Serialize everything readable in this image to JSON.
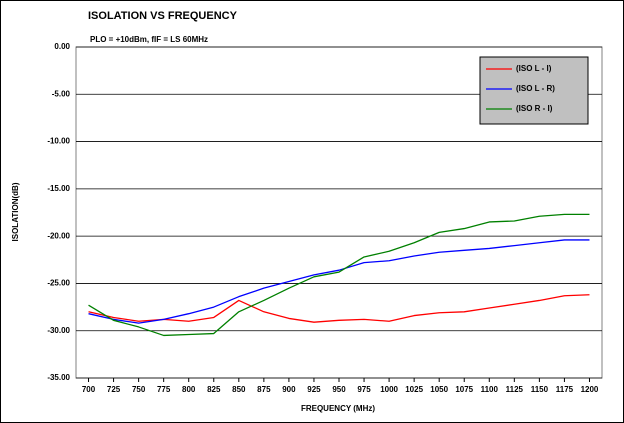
{
  "chart_data": {
    "type": "line",
    "title": "ISOLATION VS FREQUENCY",
    "subtitle": "PLO = +10dBm, fIF = LS 60MHz",
    "x_label": "FREQUENCY (MHz)",
    "y_label": "ISOLATION(dB)",
    "x": [
      700,
      725,
      750,
      775,
      800,
      825,
      850,
      875,
      900,
      925,
      950,
      975,
      1000,
      1025,
      1050,
      1075,
      1100,
      1125,
      1150,
      1175,
      1200
    ],
    "series": [
      {
        "name": "(ISO L - I)",
        "color": "#ff0000",
        "values": [
          -28.0,
          -28.6,
          -29.0,
          -28.8,
          -29.0,
          -28.6,
          -26.8,
          -28.0,
          -28.7,
          -29.1,
          -28.9,
          -28.8,
          -29.0,
          -28.4,
          -28.1,
          -28.0,
          -27.6,
          -27.2,
          -26.8,
          -26.3,
          -26.2
        ]
      },
      {
        "name": "(ISO L - R)",
        "color": "#0000ff",
        "values": [
          -28.2,
          -28.8,
          -29.2,
          -28.8,
          -28.2,
          -27.5,
          -26.4,
          -25.5,
          -24.8,
          -24.1,
          -23.6,
          -22.8,
          -22.6,
          -22.1,
          -21.7,
          -21.5,
          -21.3,
          -21.0,
          -20.7,
          -20.4,
          -20.4
        ]
      },
      {
        "name": "(ISO R - I)",
        "color": "#008000",
        "values": [
          -27.3,
          -28.9,
          -29.6,
          -30.5,
          -30.4,
          -30.3,
          -28.0,
          -26.8,
          -25.5,
          -24.3,
          -23.8,
          -22.2,
          -21.6,
          -20.7,
          -19.6,
          -19.2,
          -18.5,
          -18.4,
          -17.9,
          -17.7,
          -17.7
        ]
      }
    ],
    "xlim": [
      687.5,
      1212.5
    ],
    "xticks": [
      700,
      725,
      750,
      775,
      800,
      825,
      850,
      875,
      900,
      925,
      950,
      975,
      1000,
      1025,
      1050,
      1075,
      1100,
      1125,
      1150,
      1175,
      1200
    ],
    "ylim": [
      -35,
      0
    ],
    "yticks": [
      {
        "value": 0,
        "label": "0.00"
      },
      {
        "value": -5,
        "label": "-5.00"
      },
      {
        "value": -10,
        "label": "-10.00"
      },
      {
        "value": -15,
        "label": "-15.00"
      },
      {
        "value": -20,
        "label": "-20.00"
      },
      {
        "value": -25,
        "label": "-25.00"
      },
      {
        "value": -30,
        "label": "-30.00"
      },
      {
        "value": -35,
        "label": "-35.00"
      }
    ],
    "grid": true,
    "legend": "top-right",
    "legend_color": "#c0c0c0"
  }
}
